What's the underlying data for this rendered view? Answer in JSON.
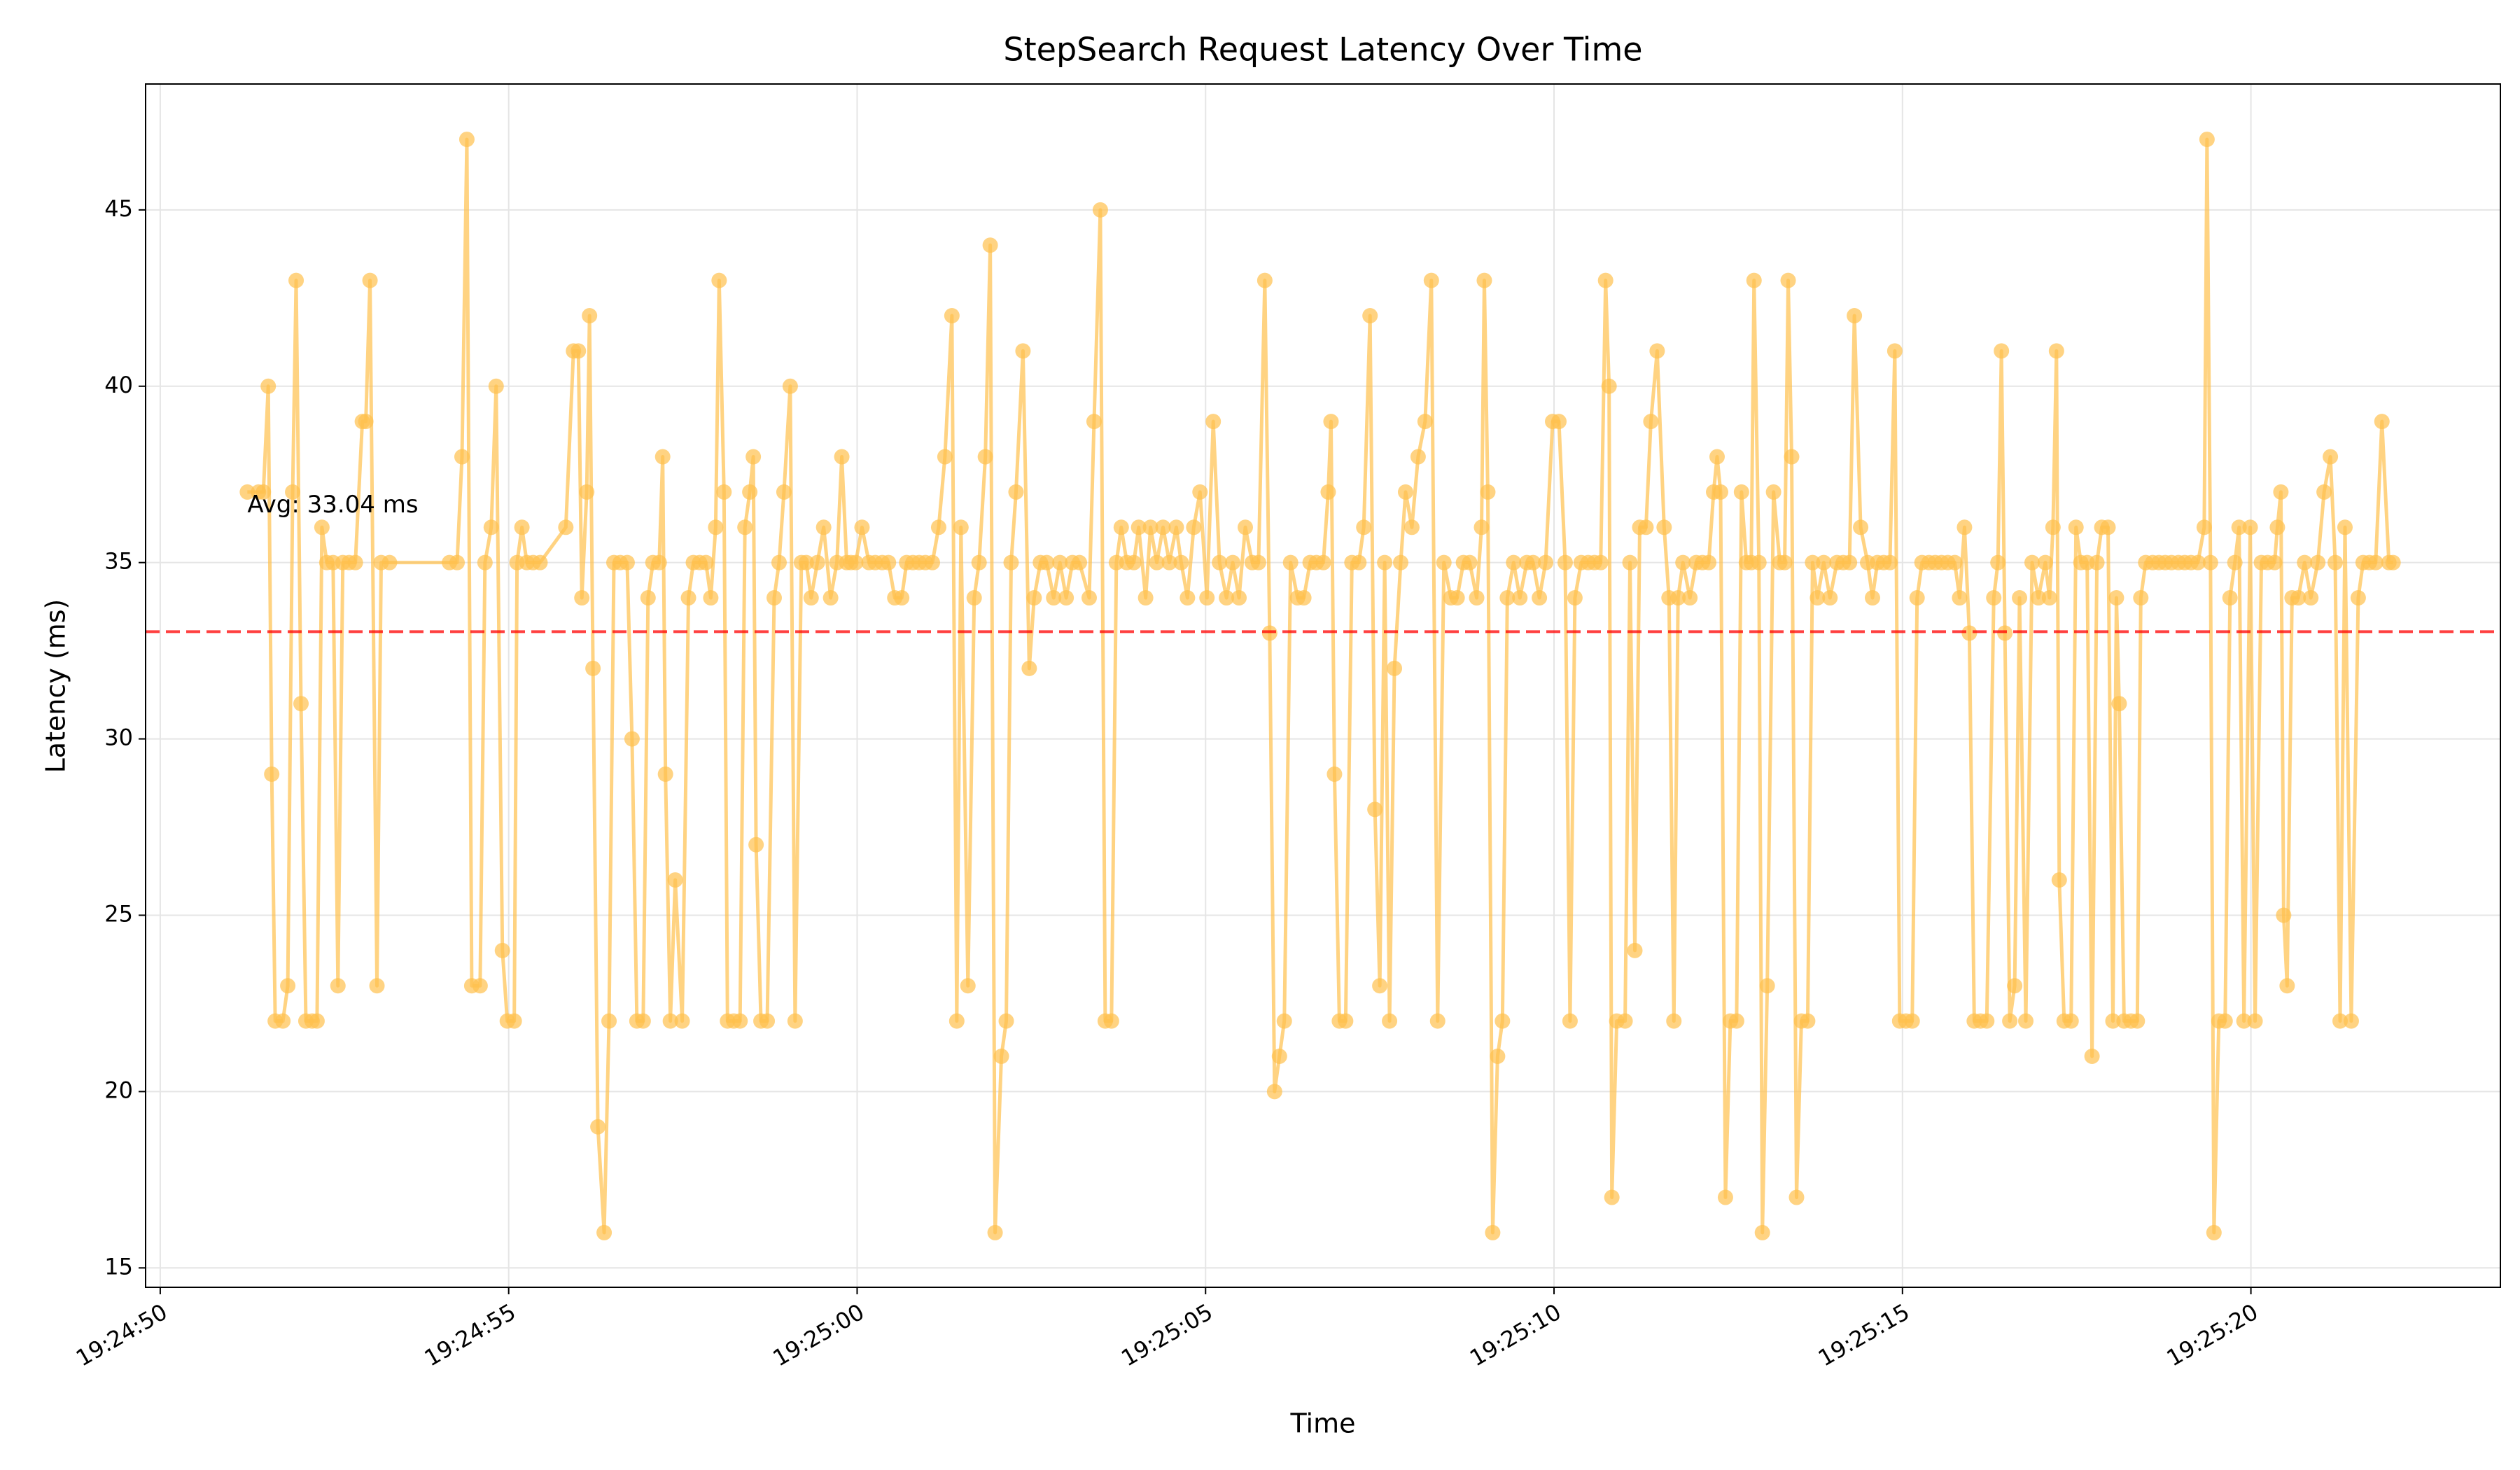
{
  "chart_data": {
    "type": "line",
    "title": "StepSearch Request Latency Over Time",
    "xlabel": "Time",
    "ylabel": "Latency (ms)",
    "series": [
      {
        "name": "Latency",
        "color": "#ffc04d",
        "x": [
          69891.25,
          69891.41,
          69891.48,
          69891.55,
          69891.6,
          69891.65,
          69891.76,
          69891.83,
          69891.9,
          69891.95,
          69892.02,
          69892.09,
          69892.18,
          69892.25,
          69892.32,
          69892.39,
          69892.48,
          69892.55,
          69892.62,
          69892.71,
          69892.8,
          69892.9,
          69892.95,
          69893.01,
          69893.11,
          69893.17,
          69893.29,
          69894.15,
          69894.26,
          69894.33,
          69894.4,
          69894.47,
          69894.59,
          69894.66,
          69894.75,
          69894.82,
          69894.91,
          69894.98,
          69895.08,
          69895.12,
          69895.19,
          69895.26,
          69895.35,
          69895.45,
          69895.82,
          69895.93,
          69896.0,
          69896.05,
          69896.12,
          69896.16,
          69896.21,
          69896.28,
          69896.37,
          69896.44,
          69896.51,
          69896.6,
          69896.7,
          69896.77,
          69896.84,
          69896.93,
          69897.0,
          69897.07,
          69897.16,
          69897.21,
          69897.25,
          69897.32,
          69897.39,
          69897.49,
          69897.58,
          69897.65,
          69897.74,
          69897.83,
          69897.9,
          69897.97,
          69898.02,
          69898.09,
          69898.14,
          69898.23,
          69898.32,
          69898.39,
          69898.46,
          69898.51,
          69898.55,
          69898.62,
          69898.71,
          69898.81,
          69898.88,
          69898.95,
          69899.04,
          69899.11,
          69899.2,
          69899.27,
          69899.34,
          69899.43,
          69899.52,
          69899.62,
          69899.71,
          69899.78,
          69899.85,
          69899.91,
          69899.98,
          69900.07,
          69900.17,
          69900.26,
          69900.36,
          69900.45,
          69900.54,
          69900.64,
          69900.71,
          69900.8,
          69900.89,
          69900.98,
          69901.08,
          69901.17,
          69901.26,
          69901.36,
          69901.43,
          69901.49,
          69901.59,
          69901.68,
          69901.75,
          69901.84,
          69901.91,
          69901.98,
          69902.07,
          69902.14,
          69902.21,
          69902.28,
          69902.38,
          69902.47,
          69902.54,
          69902.63,
          69902.72,
          69902.82,
          69902.91,
          69903.0,
          69903.09,
          69903.19,
          69903.33,
          69903.4,
          69903.49,
          69903.56,
          69903.65,
          69903.72,
          69903.79,
          69903.87,
          69903.97,
          69904.04,
          69904.14,
          69904.21,
          69904.3,
          69904.39,
          69904.48,
          69904.58,
          69904.65,
          69904.74,
          69904.83,
          69904.92,
          69905.02,
          69905.11,
          69905.2,
          69905.3,
          69905.39,
          69905.48,
          69905.57,
          69905.67,
          69905.76,
          69905.85,
          69905.92,
          69905.99,
          69906.06,
          69906.13,
          69906.22,
          69906.32,
          69906.41,
          69906.5,
          69906.59,
          69906.69,
          69906.76,
          69906.8,
          69906.85,
          69906.92,
          69907.01,
          69907.1,
          69907.2,
          69907.27,
          69907.36,
          69907.43,
          69907.5,
          69907.57,
          69907.64,
          69907.71,
          69907.8,
          69907.87,
          69907.96,
          69908.05,
          69908.15,
          69908.24,
          69908.33,
          69908.42,
          69908.52,
          69908.61,
          69908.7,
          69908.79,
          69908.89,
          69908.96,
          69909.0,
          69909.05,
          69909.12,
          69909.19,
          69909.26,
          69909.33,
          69909.42,
          69909.51,
          69909.61,
          69909.7,
          69909.79,
          69909.88,
          69909.98,
          69910.07,
          69910.16,
          69910.23,
          69910.3,
          69910.39,
          69910.49,
          69910.58,
          69910.67,
          69910.74,
          69910.79,
          69910.83,
          69910.9,
          69911.02,
          69911.09,
          69911.16,
          69911.23,
          69911.32,
          69911.39,
          69911.48,
          69911.58,
          69911.65,
          69911.72,
          69911.78,
          69911.85,
          69911.95,
          69912.04,
          69912.13,
          69912.22,
          69912.29,
          69912.34,
          69912.39,
          69912.46,
          69912.53,
          69912.62,
          69912.69,
          69912.76,
          69912.83,
          69912.87,
          69912.94,
          69912.99,
          69913.06,
          69913.15,
          69913.24,
          69913.31,
          69913.36,
          69913.41,
          69913.48,
          69913.55,
          69913.64,
          69913.71,
          69913.78,
          69913.87,
          69913.96,
          69914.06,
          69914.15,
          69914.24,
          69914.31,
          69914.4,
          69914.5,
          69914.57,
          69914.64,
          69914.73,
          69914.82,
          69914.89,
          69914.96,
          69915.05,
          69915.14,
          69915.21,
          69915.28,
          69915.38,
          69915.47,
          69915.56,
          69915.65,
          69915.75,
          69915.82,
          69915.89,
          69915.96,
          69916.03,
          69916.12,
          69916.21,
          69916.31,
          69916.37,
          69916.42,
          69916.47,
          69916.54,
          69916.61,
          69916.68,
          69916.77,
          69916.86,
          69916.95,
          69917.05,
          69917.11,
          69917.16,
          69917.21,
          69917.25,
          69917.32,
          69917.42,
          69917.49,
          69917.56,
          69917.65,
          69917.72,
          69917.79,
          69917.86,
          69917.95,
          69918.02,
          69918.07,
          69918.11,
          69918.18,
          69918.28,
          69918.37,
          69918.42,
          69918.49,
          69918.59,
          69918.68,
          69918.77,
          69918.86,
          69918.96,
          69919.05,
          69919.14,
          69919.24,
          69919.33,
          69919.37,
          69919.42,
          69919.47,
          69919.54,
          69919.63,
          69919.7,
          69919.77,
          69919.83,
          69919.9,
          69919.99,
          69920.06,
          69920.15,
          69920.24,
          69920.34,
          69920.38,
          69920.43,
          69920.47,
          69920.52,
          69920.59,
          69920.68,
          69920.77,
          69920.86,
          69920.96,
          69921.05,
          69921.14,
          69921.21,
          69921.28,
          69921.35,
          69921.44,
          69921.54,
          69921.61,
          69921.7,
          69921.79,
          69921.88,
          69921.98,
          69922.04
        ],
        "values": [
          37,
          37,
          37,
          40,
          29,
          22,
          22,
          23,
          37,
          43,
          31,
          22,
          22,
          22,
          36,
          35,
          35,
          23,
          35,
          35,
          35,
          39,
          39,
          43,
          23,
          35,
          35,
          35,
          35,
          38,
          47,
          23,
          23,
          35,
          36,
          40,
          24,
          22,
          22,
          35,
          36,
          35,
          35,
          35,
          36,
          41,
          41,
          34,
          37,
          42,
          32,
          19,
          16,
          22,
          35,
          35,
          35,
          30,
          22,
          22,
          34,
          35,
          35,
          38,
          29,
          22,
          26,
          22,
          34,
          35,
          35,
          35,
          34,
          36,
          43,
          37,
          22,
          22,
          22,
          36,
          37,
          38,
          27,
          22,
          22,
          34,
          35,
          37,
          40,
          22,
          35,
          35,
          34,
          35,
          36,
          34,
          35,
          38,
          35,
          35,
          35,
          36,
          35,
          35,
          35,
          35,
          34,
          34,
          35,
          35,
          35,
          35,
          35,
          36,
          38,
          42,
          22,
          36,
          23,
          34,
          35,
          38,
          44,
          16,
          21,
          22,
          35,
          37,
          41,
          32,
          34,
          35,
          35,
          34,
          35,
          34,
          35,
          35,
          34,
          39,
          45,
          22,
          22,
          35,
          36,
          35,
          35,
          36,
          34,
          36,
          35,
          36,
          35,
          36,
          35,
          34,
          36,
          37,
          34,
          39,
          35,
          34,
          35,
          34,
          36,
          35,
          35,
          43,
          33,
          20,
          21,
          22,
          35,
          34,
          34,
          35,
          35,
          35,
          37,
          39,
          29,
          22,
          22,
          35,
          35,
          36,
          42,
          28,
          23,
          35,
          22,
          32,
          35,
          37,
          36,
          38,
          39,
          43,
          22,
          35,
          34,
          34,
          35,
          35,
          34,
          36,
          43,
          37,
          16,
          21,
          22,
          34,
          35,
          34,
          35,
          35,
          34,
          35,
          39,
          39,
          35,
          22,
          34,
          35,
          35,
          35,
          35,
          43,
          40,
          17,
          22,
          22,
          35,
          24,
          36,
          36,
          39,
          41,
          36,
          34,
          22,
          34,
          35,
          34,
          35,
          35,
          35,
          37,
          38,
          37,
          17,
          22,
          22,
          37,
          35,
          35,
          43,
          35,
          16,
          23,
          37,
          35,
          35,
          43,
          38,
          17,
          22,
          22,
          35,
          34,
          35,
          34,
          35,
          35,
          35,
          42,
          36,
          35,
          34,
          35,
          35,
          35,
          41,
          22,
          22,
          22,
          34,
          35,
          35,
          35,
          35,
          35,
          35,
          34,
          36,
          33,
          22,
          22,
          22,
          34,
          35,
          41,
          33,
          22,
          23,
          34,
          22,
          35,
          34,
          35,
          34,
          36,
          41,
          26,
          22,
          22,
          36,
          35,
          35,
          21,
          35,
          36,
          36,
          22,
          34,
          31,
          22,
          22,
          22,
          34,
          35,
          35,
          35,
          35,
          35,
          35,
          35,
          35,
          35,
          36,
          47,
          35,
          16,
          22,
          22,
          34,
          35,
          36,
          22,
          36,
          22,
          35,
          35,
          35,
          36,
          37,
          25,
          23,
          34,
          34,
          35,
          34,
          35,
          37,
          38,
          35,
          22,
          36,
          22,
          34,
          35,
          35,
          35,
          39,
          35,
          35
        ]
      }
    ],
    "average": 33.04,
    "annotation": "Avg: 33.04 ms",
    "average_color": "#ff0000",
    "xlim": [
      69889.79,
      69923.58
    ],
    "xticks": [
      {
        "value": 69890,
        "label": "19:24:50"
      },
      {
        "value": 69895,
        "label": "19:24:55"
      },
      {
        "value": 69900,
        "label": "19:25:00"
      },
      {
        "value": 69905,
        "label": "19:25:05"
      },
      {
        "value": 69910,
        "label": "19:25:10"
      },
      {
        "value": 69915,
        "label": "19:25:15"
      },
      {
        "value": 69920,
        "label": "19:25:20"
      }
    ],
    "ylim": [
      14.45,
      48.57
    ],
    "yticks": [
      15,
      20,
      25,
      30,
      35,
      40,
      45
    ],
    "grid": true
  }
}
